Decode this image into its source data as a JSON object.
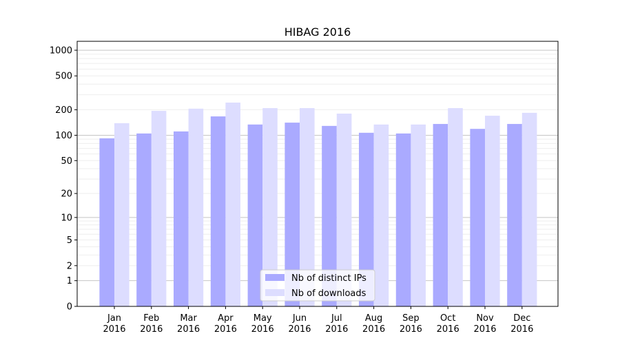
{
  "chart_data": {
    "type": "bar",
    "title": "HIBAG 2016",
    "xlabel": "",
    "ylabel": "",
    "yscale": "symlog (log10(1+y))",
    "ylim": [
      0,
      1000
    ],
    "yticks": [
      0,
      1,
      2,
      5,
      10,
      20,
      50,
      100,
      200,
      500,
      1000
    ],
    "ytick_labels": [
      "0",
      "1",
      "2",
      "5",
      "10",
      "20",
      "50",
      "100",
      "200",
      "500",
      "1000"
    ],
    "grid": true,
    "legend_position": "bottom-center",
    "categories": [
      [
        "Jan",
        "2016"
      ],
      [
        "Feb",
        "2016"
      ],
      [
        "Mar",
        "2016"
      ],
      [
        "Apr",
        "2016"
      ],
      [
        "May",
        "2016"
      ],
      [
        "Jun",
        "2016"
      ],
      [
        "Jul",
        "2016"
      ],
      [
        "Aug",
        "2016"
      ],
      [
        "Sep",
        "2016"
      ],
      [
        "Oct",
        "2016"
      ],
      [
        "Nov",
        "2016"
      ],
      [
        "Dec",
        "2016"
      ]
    ],
    "series": [
      {
        "name": "Nb of distinct IPs",
        "color": "#aaaaff",
        "values": [
          92,
          105,
          111,
          167,
          134,
          141,
          129,
          107,
          105,
          136,
          119,
          136
        ]
      },
      {
        "name": "Nb of downloads",
        "color": "#ddddff",
        "values": [
          139,
          194,
          206,
          243,
          209,
          209,
          180,
          134,
          134,
          209,
          170,
          184
        ]
      }
    ]
  }
}
